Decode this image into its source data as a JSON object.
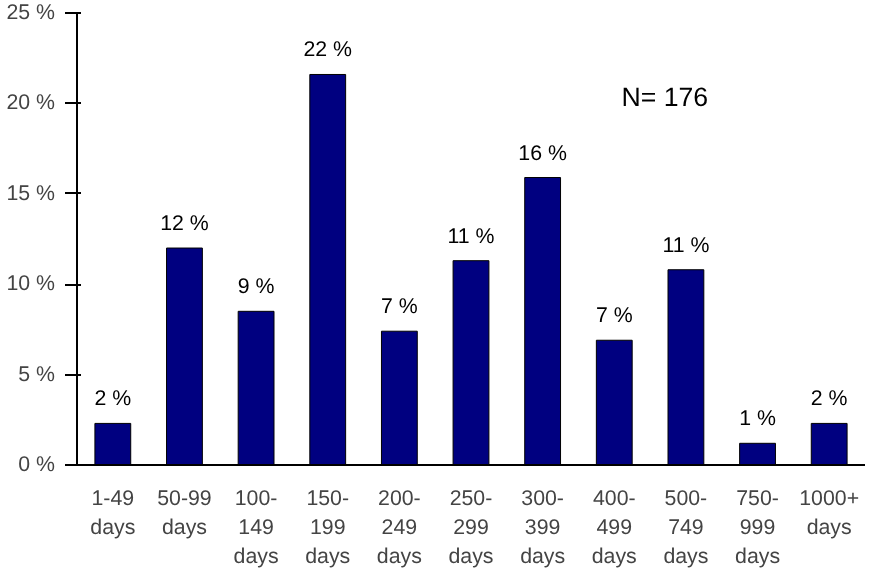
{
  "chart_data": {
    "type": "bar",
    "categories": [
      "1-49\ndays",
      "50-99\ndays",
      "100-\n149\ndays",
      "150-\n199\ndays",
      "200-\n249\ndays",
      "250-\n299\ndays",
      "300-\n399\ndays",
      "400-\n499\ndays",
      "500-\n749\ndays",
      "750-\n999\ndays",
      "1000+\ndays"
    ],
    "values": [
      2.3,
      12.0,
      8.5,
      21.6,
      7.4,
      11.3,
      15.9,
      6.9,
      10.8,
      1.2,
      2.3
    ],
    "value_labels": [
      "2 %",
      "12 %",
      "9 %",
      "22 %",
      "7 %",
      "11 %",
      "16 %",
      "7 %",
      "11 %",
      "1 %",
      "2 %"
    ],
    "color": "#000080",
    "ylim": [
      0,
      25
    ],
    "yticks": [
      {
        "value": 0,
        "label": "0 %"
      },
      {
        "value": 5,
        "label": "5 %"
      },
      {
        "value": 10,
        "label": "10 %"
      },
      {
        "value": 15,
        "label": "15 %"
      },
      {
        "value": 20,
        "label": "20 %"
      },
      {
        "value": 25,
        "label": "25 %"
      }
    ],
    "annotations": [
      "N= 176"
    ],
    "grid": false
  }
}
